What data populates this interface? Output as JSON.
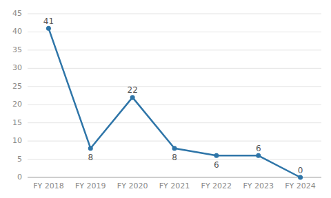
{
  "chart_data": {
    "type": "line",
    "categories": [
      "FY 2018",
      "FY 2019",
      "FY 2020",
      "FY 2021",
      "FY 2022",
      "FY 2023",
      "FY 2024"
    ],
    "values": [
      41,
      8,
      22,
      8,
      6,
      6,
      0
    ],
    "color": "#2e75a8",
    "marker": "circle",
    "ylim": [
      0,
      45
    ],
    "yticks": [
      0,
      5,
      10,
      15,
      20,
      25,
      30,
      35,
      40,
      45
    ],
    "grid": true,
    "data_labels": true
  }
}
